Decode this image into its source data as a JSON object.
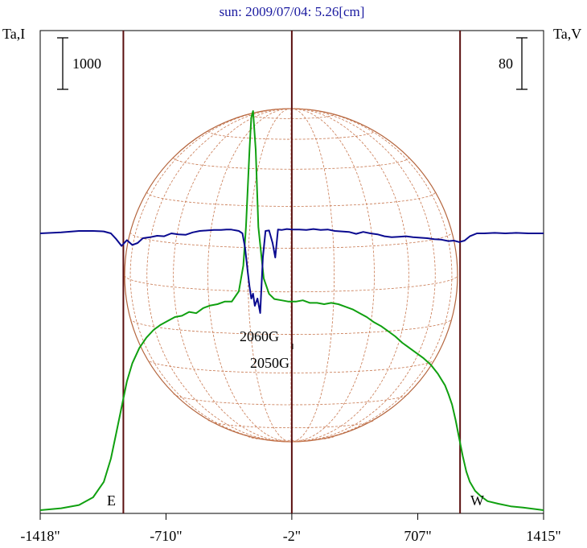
{
  "chart_data": {
    "type": "line",
    "title": "sun: 2009/07/04: 5.26[cm]",
    "left_axis_label": "Ta,I",
    "right_axis_label": "Ta,V",
    "scale_bars": {
      "left": "1000",
      "right": "80"
    },
    "x_ticks": [
      "-1418\"",
      "-710\"",
      "-2\"",
      "707\"",
      "1415\""
    ],
    "x_tick_values": [
      -1418,
      -710,
      -2,
      707,
      1415
    ],
    "xlim": [
      -1418,
      1415
    ],
    "vertical_markers": [
      -950,
      -2,
      945
    ],
    "limb_labels": {
      "east": "E",
      "west": "W"
    },
    "annotations": [
      {
        "text": "2060G",
        "x": -130,
        "y_frac": 0.41
      },
      {
        "text": "2050G",
        "x": 40,
        "y_frac": 0.37
      }
    ],
    "series": [
      {
        "color": "#10a010",
        "x": [
          -1418,
          -1300,
          -1200,
          -1120,
          -1060,
          -1020,
          -990,
          -960,
          -930,
          -900,
          -860,
          -820,
          -780,
          -740,
          -700,
          -660,
          -620,
          -580,
          -540,
          -500,
          -460,
          -420,
          -380,
          -340,
          -300,
          -275,
          -260,
          -250,
          -240,
          -230,
          -220,
          -205,
          -190,
          -160,
          -130,
          -100,
          -60,
          -20,
          20,
          60,
          100,
          140,
          180,
          220,
          260,
          300,
          340,
          380,
          420,
          460,
          500,
          540,
          580,
          620,
          660,
          700,
          740,
          780,
          820,
          860,
          880,
          900,
          920,
          940,
          960,
          980,
          1000,
          1030,
          1060,
          1100,
          1160,
          1230,
          1300,
          1415
        ],
        "y": [
          0.0,
          0.015,
          0.04,
          0.1,
          0.22,
          0.4,
          0.6,
          0.8,
          1.0,
          1.14,
          1.26,
          1.34,
          1.4,
          1.44,
          1.47,
          1.5,
          1.51,
          1.54,
          1.53,
          1.57,
          1.59,
          1.6,
          1.62,
          1.62,
          1.7,
          1.9,
          2.2,
          2.5,
          2.8,
          3.05,
          3.1,
          2.8,
          2.2,
          1.8,
          1.68,
          1.64,
          1.63,
          1.62,
          1.62,
          1.63,
          1.61,
          1.61,
          1.6,
          1.61,
          1.6,
          1.58,
          1.56,
          1.53,
          1.5,
          1.46,
          1.43,
          1.39,
          1.35,
          1.3,
          1.26,
          1.22,
          1.18,
          1.13,
          1.06,
          0.97,
          0.9,
          0.82,
          0.7,
          0.56,
          0.42,
          0.3,
          0.22,
          0.15,
          0.11,
          0.07,
          0.05,
          0.03,
          0.02,
          0.0
        ]
      },
      {
        "color": "#0a0a90",
        "x": [
          -1418,
          -1300,
          -1200,
          -1120,
          -1060,
          -1020,
          -990,
          -960,
          -930,
          -900,
          -870,
          -840,
          -800,
          -760,
          -720,
          -680,
          -640,
          -600,
          -560,
          -520,
          -480,
          -440,
          -400,
          -370,
          -345,
          -330,
          -315,
          -300,
          -280,
          -265,
          -250,
          -240,
          -230,
          -220,
          -210,
          -195,
          -180,
          -165,
          -150,
          -130,
          -110,
          -95,
          -80,
          -60,
          -30,
          0,
          40,
          80,
          120,
          160,
          200,
          240,
          280,
          320,
          360,
          400,
          440,
          480,
          520,
          560,
          600,
          640,
          680,
          720,
          760,
          800,
          840,
          880,
          910,
          940,
          970,
          1000,
          1040,
          1080,
          1140,
          1200,
          1260,
          1330,
          1415
        ],
        "y": [
          0.0,
          0.02,
          0.05,
          0.05,
          0.04,
          0.0,
          -0.12,
          -0.26,
          -0.14,
          -0.24,
          -0.2,
          -0.1,
          -0.08,
          -0.05,
          -0.06,
          0.0,
          -0.02,
          -0.03,
          0.02,
          0.05,
          0.06,
          0.07,
          0.07,
          0.08,
          0.08,
          0.07,
          0.06,
          0.05,
          0.0,
          -0.3,
          -0.8,
          -1.1,
          -1.35,
          -1.25,
          -1.5,
          -1.35,
          -1.65,
          -0.5,
          0.05,
          0.06,
          -0.2,
          -0.5,
          0.08,
          0.07,
          0.09,
          0.08,
          0.08,
          0.07,
          0.09,
          0.07,
          0.08,
          0.05,
          0.04,
          0.03,
          -0.01,
          0.03,
          0.0,
          -0.02,
          -0.06,
          -0.08,
          -0.07,
          -0.06,
          -0.08,
          -0.09,
          -0.1,
          -0.12,
          -0.13,
          -0.16,
          -0.15,
          -0.18,
          -0.15,
          -0.06,
          0.0,
          0.0,
          0.01,
          0.0,
          0.01,
          0.0,
          0.0
        ]
      }
    ]
  }
}
